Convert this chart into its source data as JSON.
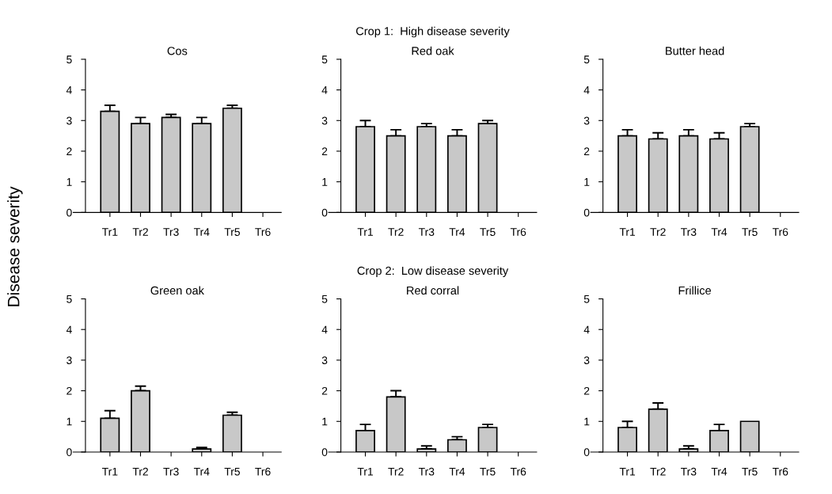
{
  "chart_data": [
    {
      "type": "bar",
      "title": "Cos",
      "ylabel": "Disease severity",
      "annotations": [
        "Crop 1:  High disease severity"
      ],
      "categories": [
        "Tr1",
        "Tr2",
        "Tr3",
        "Tr4",
        "Tr5",
        "Tr6"
      ],
      "values": [
        3.3,
        2.9,
        3.1,
        2.9,
        3.4,
        0
      ],
      "errors": [
        [
          3.3,
          3.5
        ],
        [
          2.9,
          3.1
        ],
        [
          3.1,
          3.2
        ],
        [
          2.9,
          3.1
        ],
        [
          3.4,
          3.5
        ],
        null
      ],
      "color": "#c8c8c8",
      "ylim": [
        0,
        5
      ],
      "yticks": [
        0,
        1,
        2,
        3,
        4,
        5
      ],
      "grid": false
    },
    {
      "type": "bar",
      "title": "Red oak",
      "categories": [
        "Tr1",
        "Tr2",
        "Tr3",
        "Tr4",
        "Tr5",
        "Tr6"
      ],
      "values": [
        2.8,
        2.5,
        2.8,
        2.5,
        2.9,
        0
      ],
      "errors": [
        [
          2.8,
          3.0
        ],
        [
          2.5,
          2.7
        ],
        [
          2.8,
          2.9
        ],
        [
          2.5,
          2.7
        ],
        [
          2.9,
          3.0
        ],
        null
      ],
      "color": "#c8c8c8",
      "ylim": [
        0,
        5
      ],
      "yticks": [
        0,
        1,
        2,
        3,
        4,
        5
      ],
      "grid": false
    },
    {
      "type": "bar",
      "title": "Butter head",
      "categories": [
        "Tr1",
        "Tr2",
        "Tr3",
        "Tr4",
        "Tr5",
        "Tr6"
      ],
      "values": [
        2.5,
        2.4,
        2.5,
        2.4,
        2.8,
        0
      ],
      "errors": [
        [
          2.5,
          2.7
        ],
        [
          2.4,
          2.6
        ],
        [
          2.5,
          2.7
        ],
        [
          2.4,
          2.6
        ],
        [
          2.8,
          2.9
        ],
        null
      ],
      "color": "#c8c8c8",
      "ylim": [
        0,
        5
      ],
      "yticks": [
        0,
        1,
        2,
        3,
        4,
        5
      ],
      "grid": false
    },
    {
      "type": "bar",
      "title": "Green oak",
      "annotations": [
        "Crop 2:  Low disease severity"
      ],
      "categories": [
        "Tr1",
        "Tr2",
        "Tr3",
        "Tr4",
        "Tr5",
        "Tr6"
      ],
      "values": [
        1.1,
        2.0,
        0,
        0.1,
        1.2,
        0
      ],
      "errors": [
        [
          1.1,
          1.35
        ],
        [
          2.0,
          2.15
        ],
        null,
        [
          0.1,
          0.15
        ],
        [
          1.2,
          1.3
        ],
        null
      ],
      "color": "#c8c8c8",
      "ylim": [
        0,
        5
      ],
      "yticks": [
        0,
        1,
        2,
        3,
        4,
        5
      ],
      "grid": false
    },
    {
      "type": "bar",
      "title": "Red corral",
      "categories": [
        "Tr1",
        "Tr2",
        "Tr3",
        "Tr4",
        "Tr5",
        "Tr6"
      ],
      "values": [
        0.7,
        1.8,
        0.1,
        0.4,
        0.8,
        0
      ],
      "errors": [
        [
          0.7,
          0.9
        ],
        [
          1.8,
          2.0
        ],
        [
          0.1,
          0.2
        ],
        [
          0.4,
          0.5
        ],
        [
          0.8,
          0.9
        ],
        null
      ],
      "color": "#c8c8c8",
      "ylim": [
        0,
        5
      ],
      "yticks": [
        0,
        1,
        2,
        3,
        4,
        5
      ],
      "grid": false
    },
    {
      "type": "bar",
      "title": "Frillice",
      "categories": [
        "Tr1",
        "Tr2",
        "Tr3",
        "Tr4",
        "Tr5",
        "Tr6"
      ],
      "values": [
        0.8,
        1.4,
        0.1,
        0.7,
        1.0,
        0
      ],
      "errors": [
        [
          0.8,
          1.0
        ],
        [
          1.4,
          1.6
        ],
        [
          0.1,
          0.2
        ],
        [
          0.7,
          0.9
        ],
        null,
        null
      ],
      "color": "#c8c8c8",
      "ylim": [
        0,
        5
      ],
      "yticks": [
        0,
        1,
        2,
        3,
        4,
        5
      ],
      "grid": false
    }
  ]
}
